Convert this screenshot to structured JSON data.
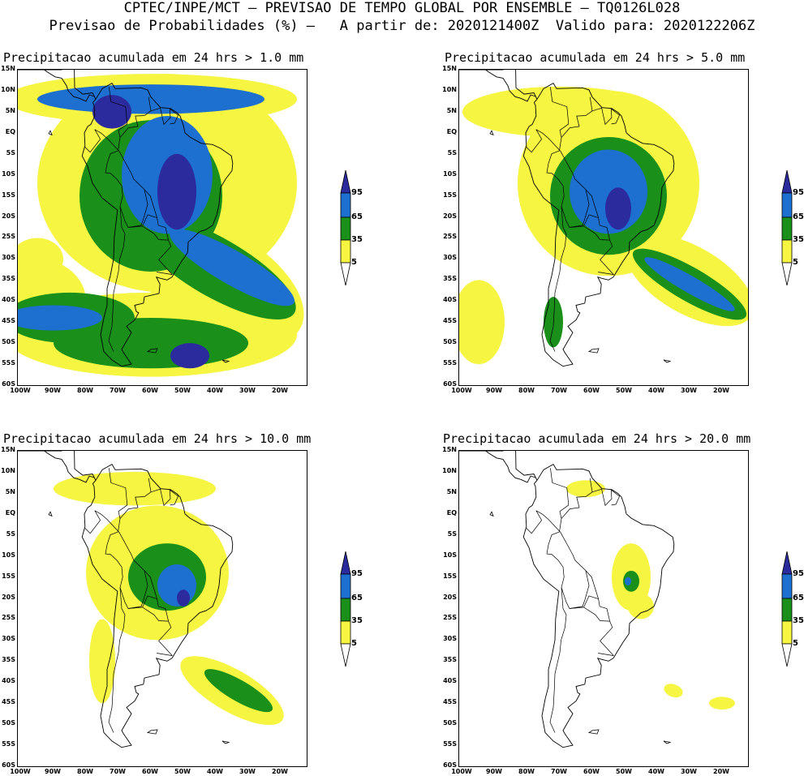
{
  "header": {
    "line1": "CPTEC/INPE/MCT – PREVISAO DE TEMPO GLOBAL POR ENSEMBLE – TQ0126L028",
    "line2": "Previsao de Probabilidades (%) –   A partir de: 2020121400Z  Valido para: 2020122206Z"
  },
  "lat_labels": [
    "15N",
    "10N",
    "5N",
    "EQ",
    "5S",
    "10S",
    "15S",
    "20S",
    "25S",
    "30S",
    "35S",
    "40S",
    "45S",
    "50S",
    "55S",
    "60S"
  ],
  "lon_labels": [
    "100W",
    "90W",
    "80W",
    "70W",
    "60W",
    "50W",
    "40W",
    "30W",
    "20W"
  ],
  "legend": {
    "labels": [
      "95",
      "65",
      "35",
      "5"
    ],
    "colors": {
      "p95": "#2b2b9e",
      "p65": "#1d6fd0",
      "p35": "#1a8f1a",
      "p5": "#f5f542"
    }
  },
  "panels": [
    {
      "title": "Precipitacao acumulada em 24 hrs > 1.0 mm"
    },
    {
      "title": "Precipitacao acumulada em 24 hrs > 5.0 mm"
    },
    {
      "title": "Precipitacao acumulada em 24 hrs > 10.0 mm"
    },
    {
      "title": "Precipitacao acumulada em 24 hrs > 20.0 mm"
    }
  ]
}
